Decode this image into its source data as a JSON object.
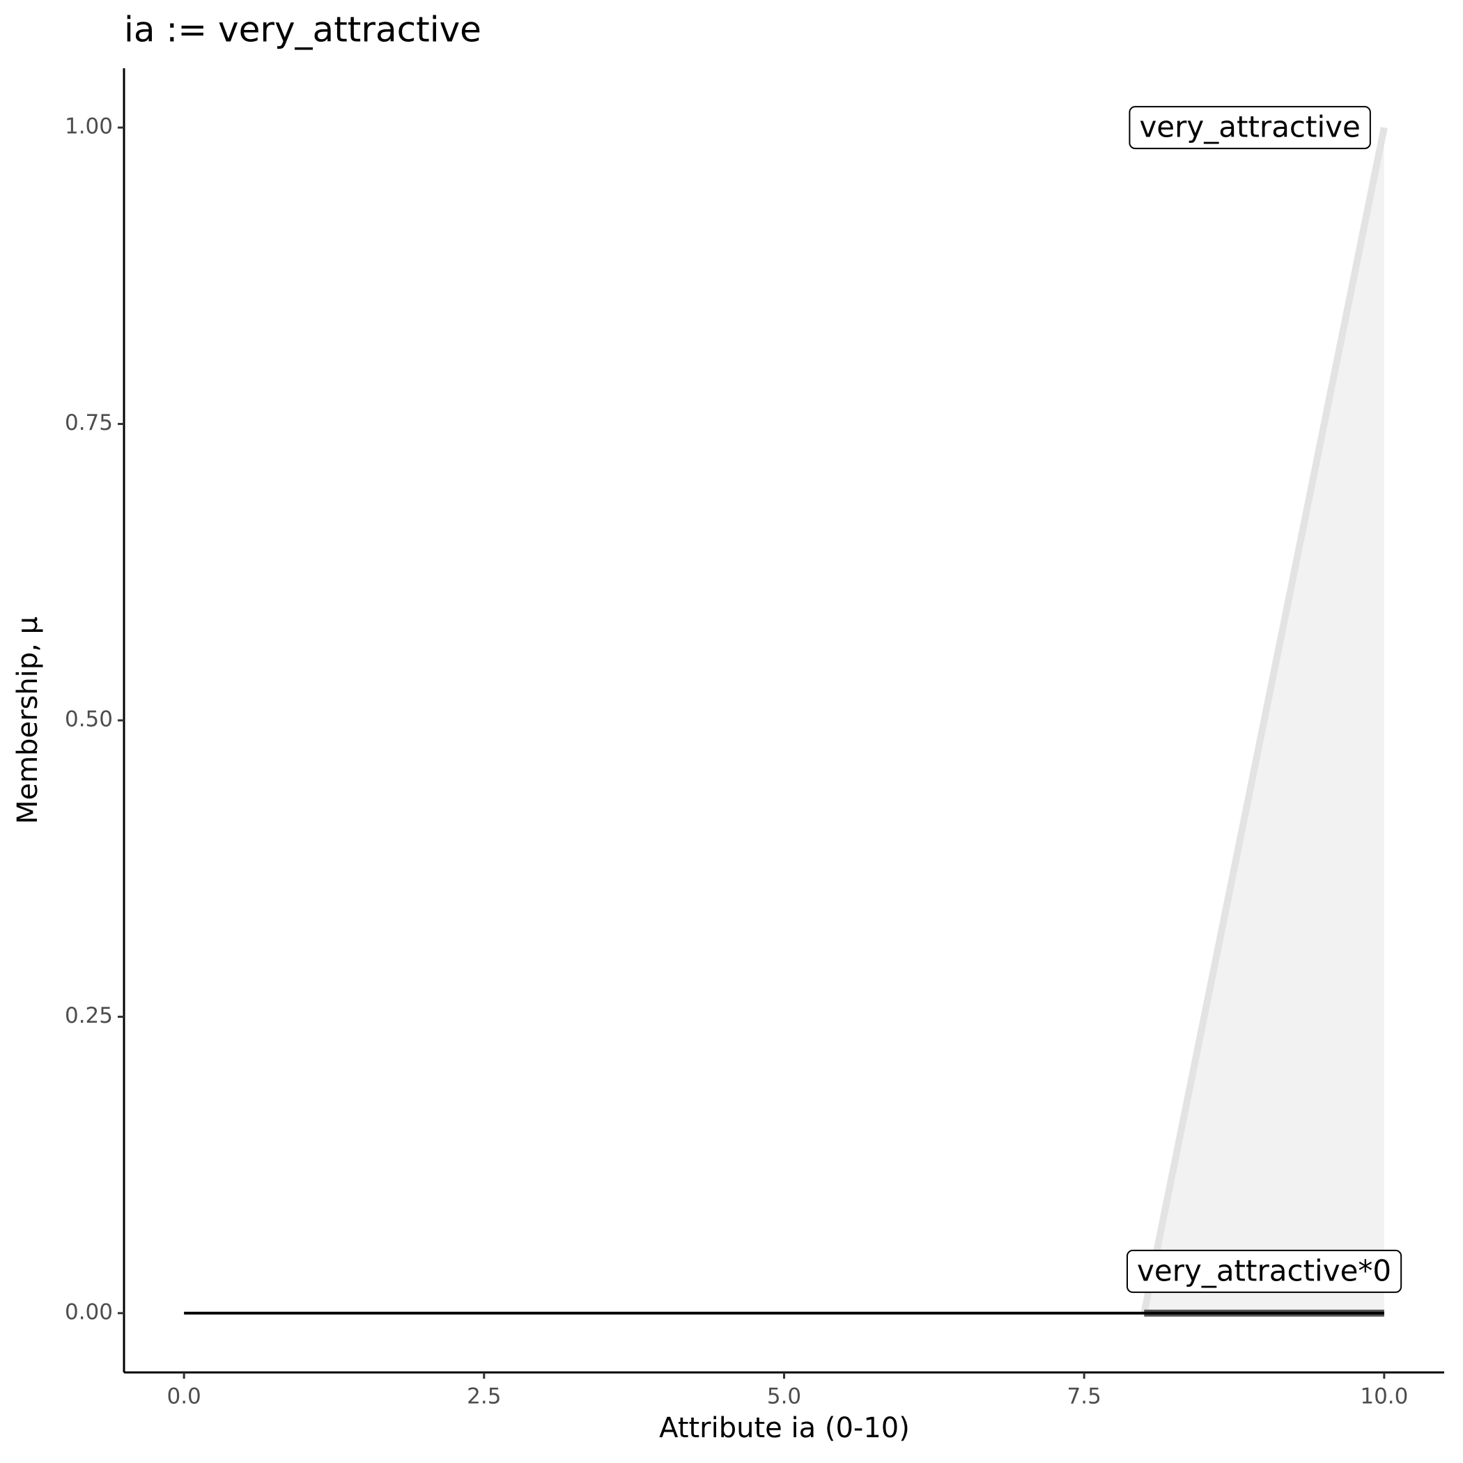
{
  "chart_data": {
    "type": "line",
    "title": "ia := very_attractive",
    "x_label": "Attribute ia (0-10)",
    "y_label": "Membership, μ",
    "xlim": [
      -0.5,
      10.5
    ],
    "ylim": [
      -0.05,
      1.05
    ],
    "xticks": [
      {
        "value": 0,
        "label": "0.0"
      },
      2.5,
      {
        "value": 5,
        "label": "5.0"
      },
      7.5,
      {
        "value": 10,
        "label": "10.0"
      }
    ],
    "yticks": [
      {
        "value": 0,
        "label": "0.00"
      },
      {
        "value": 0.25,
        "label": "0.25"
      },
      {
        "value": 0.5,
        "label": "0.50"
      },
      {
        "value": 0.75,
        "label": "0.75"
      },
      {
        "value": 1,
        "label": "1.00"
      }
    ],
    "grid": false,
    "series": [
      {
        "name": "very_attractive",
        "color": "#e3e3e3",
        "fill": "#f2f2f2",
        "x": [
          8,
          10
        ],
        "values": [
          0,
          1
        ]
      },
      {
        "name": "very_attractive*0",
        "color": "#555555",
        "x": [
          8,
          10
        ],
        "values": [
          0,
          0
        ]
      },
      {
        "color": "#000000",
        "x": [
          0,
          10
        ],
        "values": [
          0,
          0
        ]
      }
    ]
  }
}
